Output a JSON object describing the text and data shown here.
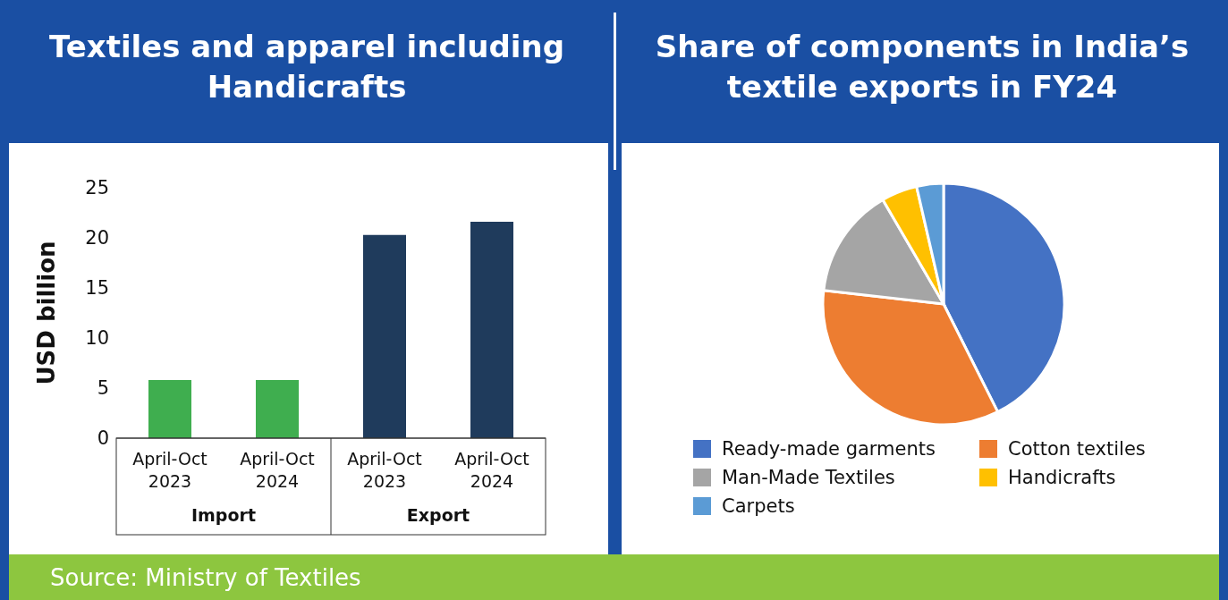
{
  "chart_data": [
    {
      "type": "bar",
      "title": "Textiles and apparel including Handicrafts",
      "ylabel": "USD billion",
      "categories": [
        "April-Oct 2023",
        "April-Oct 2024",
        "April-Oct 2023",
        "April-Oct 2024"
      ],
      "values": [
        5.8,
        5.8,
        20.3,
        21.6
      ],
      "colors": [
        "#3fae4f",
        "#3fae4f",
        "#1f3b5c",
        "#1f3b5c"
      ],
      "ylim": [
        0,
        25
      ],
      "yticks": [
        0,
        5,
        10,
        15,
        20,
        25
      ],
      "grid": false,
      "annotations": [
        "Import",
        "Export",
        "Source: Ministry of Textiles"
      ]
    },
    {
      "type": "pie",
      "title": "Share of components in India’s textile exports in FY24",
      "categories": [
        "Ready-made garments",
        "Cotton textiles",
        "Man-Made Textiles",
        "Handicrafts",
        "Carpets"
      ],
      "values": [
        42.6,
        34.2,
        14.8,
        4.8,
        3.6
      ],
      "colors": [
        "#4472c4",
        "#ed7d31",
        "#a5a5a5",
        "#ffc000",
        "#5b9bd5"
      ],
      "legend": "bottom"
    }
  ]
}
